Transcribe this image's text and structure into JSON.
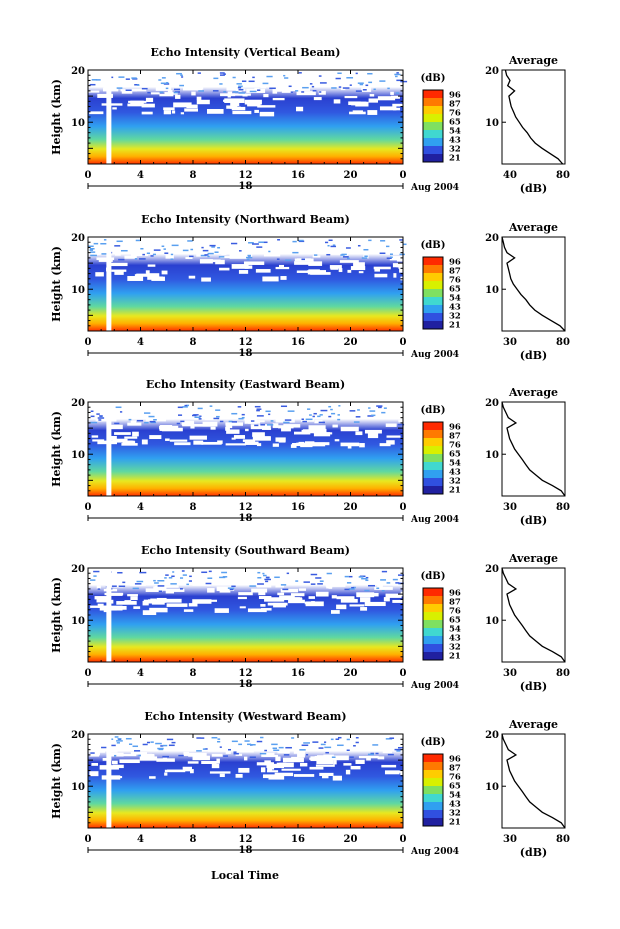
{
  "chart_data": {
    "type": "heatmap",
    "time_axis_label": "Local Time",
    "date_label": "Aug 2004",
    "day_label": "18",
    "x_ticks": [
      "0",
      "4",
      "8",
      "12",
      "16",
      "20",
      "0"
    ],
    "xlim": [
      0,
      24
    ],
    "ylabel": "Height (km)",
    "ylim": [
      2,
      20
    ],
    "y_ticks": [
      10,
      20
    ],
    "colorbar": {
      "unit": "(dB)",
      "levels": [
        "96",
        "87",
        "76",
        "65",
        "54",
        "43",
        "32",
        "21"
      ],
      "colors": [
        "#ff2a00",
        "#ff7a00",
        "#ffcc00",
        "#d8f000",
        "#7fe060",
        "#40d8d0",
        "#30a0f0",
        "#3050e0",
        "#2020a0"
      ]
    },
    "profile": {
      "title": "Average",
      "xlabel": "(dB)",
      "ylim": [
        2,
        20
      ],
      "y_ticks": [
        10,
        20
      ]
    },
    "panels": [
      {
        "title": "Echo Intensity (Vertical Beam)",
        "profile_xticks": [
          "40",
          "80"
        ],
        "profile_xlim": [
          25,
          80
        ],
        "profile": [
          [
            2,
            78
          ],
          [
            3,
            74
          ],
          [
            4,
            67
          ],
          [
            5,
            60
          ],
          [
            6,
            54
          ],
          [
            7,
            50
          ],
          [
            8,
            47
          ],
          [
            9,
            43
          ],
          [
            10,
            40
          ],
          [
            11,
            37
          ],
          [
            12,
            35
          ],
          [
            13,
            33
          ],
          [
            14,
            32
          ],
          [
            15,
            31
          ],
          [
            16,
            36
          ],
          [
            17,
            30
          ],
          [
            18,
            32
          ],
          [
            19,
            29
          ],
          [
            20,
            28
          ]
        ]
      },
      {
        "title": "Echo Intensity (Northward Beam)",
        "profile_xticks": [
          "30",
          "80"
        ],
        "profile_xlim": [
          30,
          80
        ],
        "profile": [
          [
            2,
            80
          ],
          [
            3,
            76
          ],
          [
            4,
            69
          ],
          [
            5,
            62
          ],
          [
            6,
            56
          ],
          [
            7,
            52
          ],
          [
            8,
            49
          ],
          [
            9,
            45
          ],
          [
            10,
            42
          ],
          [
            11,
            39
          ],
          [
            12,
            37
          ],
          [
            13,
            36
          ],
          [
            14,
            35
          ],
          [
            15,
            34
          ],
          [
            16,
            40
          ],
          [
            17,
            34
          ],
          [
            18,
            32
          ],
          [
            19,
            31
          ],
          [
            20,
            30
          ]
        ]
      },
      {
        "title": "Echo Intensity (Eastward Beam)",
        "profile_xticks": [
          "30",
          "80"
        ],
        "profile_xlim": [
          30,
          80
        ],
        "profile": [
          [
            2,
            80
          ],
          [
            3,
            77
          ],
          [
            4,
            70
          ],
          [
            5,
            62
          ],
          [
            6,
            57
          ],
          [
            7,
            52
          ],
          [
            8,
            49
          ],
          [
            9,
            46
          ],
          [
            10,
            43
          ],
          [
            11,
            40
          ],
          [
            12,
            38
          ],
          [
            13,
            36
          ],
          [
            14,
            35
          ],
          [
            15,
            34
          ],
          [
            16,
            41
          ],
          [
            17,
            35
          ],
          [
            18,
            33
          ],
          [
            19,
            31
          ],
          [
            20,
            30
          ]
        ]
      },
      {
        "title": "Echo Intensity (Southward Beam)",
        "profile_xticks": [
          "30",
          "80"
        ],
        "profile_xlim": [
          30,
          80
        ],
        "profile": [
          [
            2,
            80
          ],
          [
            3,
            77
          ],
          [
            4,
            70
          ],
          [
            5,
            62
          ],
          [
            6,
            57
          ],
          [
            7,
            52
          ],
          [
            8,
            49
          ],
          [
            9,
            46
          ],
          [
            10,
            43
          ],
          [
            11,
            40
          ],
          [
            12,
            38
          ],
          [
            13,
            36
          ],
          [
            14,
            35
          ],
          [
            15,
            34
          ],
          [
            16,
            41
          ],
          [
            17,
            35
          ],
          [
            18,
            33
          ],
          [
            19,
            31
          ],
          [
            20,
            30
          ]
        ]
      },
      {
        "title": "Echo Intensity (Westward Beam)",
        "profile_xticks": [
          "30",
          "80"
        ],
        "profile_xlim": [
          30,
          80
        ],
        "profile": [
          [
            2,
            80
          ],
          [
            3,
            77
          ],
          [
            4,
            70
          ],
          [
            5,
            62
          ],
          [
            6,
            57
          ],
          [
            7,
            52
          ],
          [
            8,
            49
          ],
          [
            9,
            46
          ],
          [
            10,
            43
          ],
          [
            11,
            40
          ],
          [
            12,
            38
          ],
          [
            13,
            36
          ],
          [
            14,
            35
          ],
          [
            15,
            34
          ],
          [
            16,
            41
          ],
          [
            17,
            35
          ],
          [
            18,
            33
          ],
          [
            19,
            31
          ],
          [
            20,
            30
          ]
        ]
      }
    ]
  }
}
